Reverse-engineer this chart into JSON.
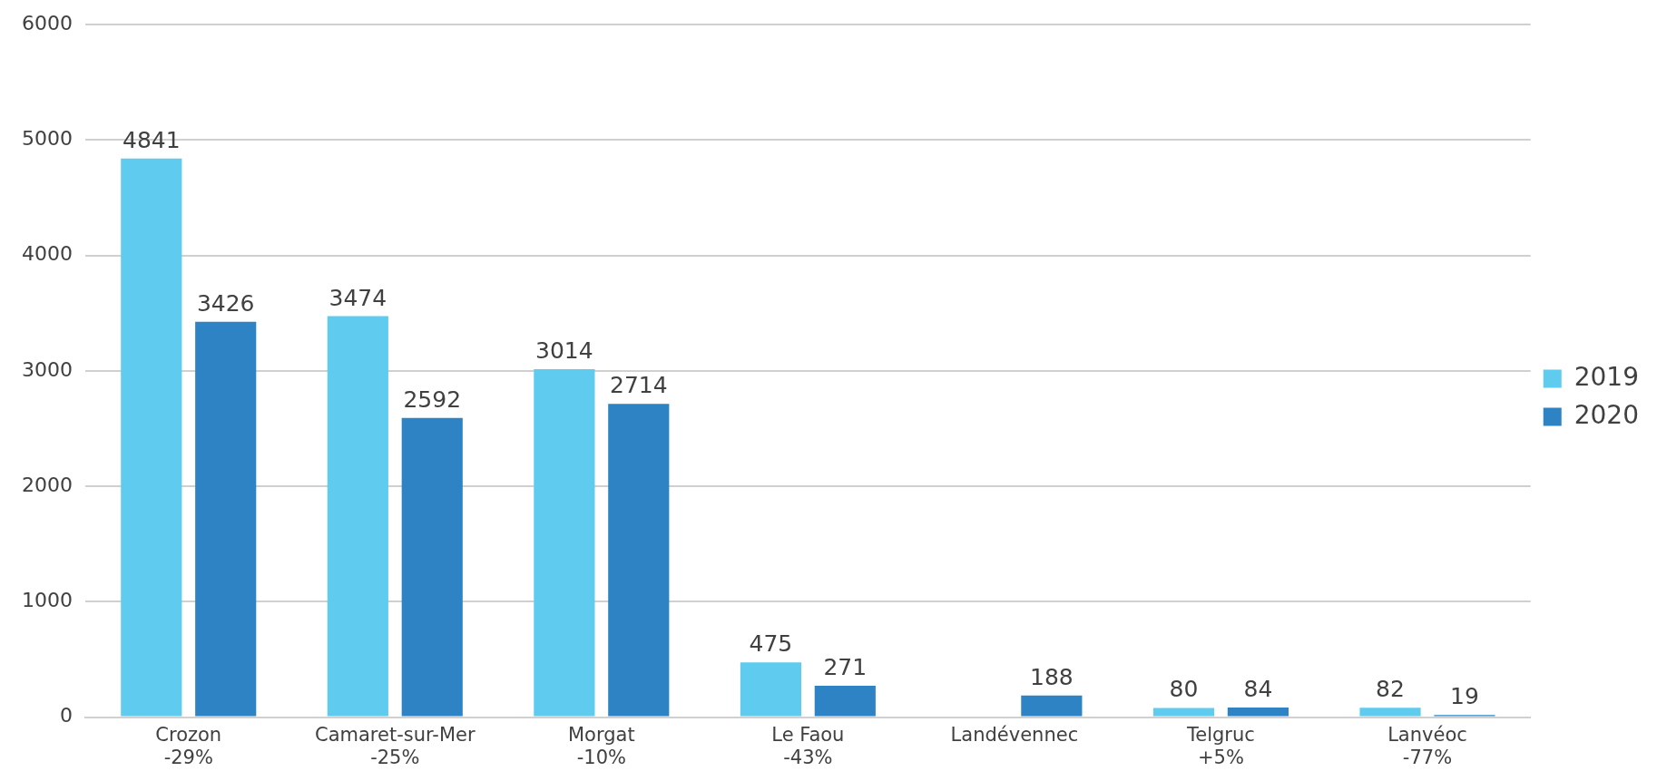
{
  "chart_data": {
    "type": "bar",
    "categories": [
      "Crozon\n-29%",
      "Camaret-sur-Mer\n-25%",
      "Morgat\n-10%",
      "Le Faou\n-43%",
      "Landévennec",
      "Telgruc\n+5%",
      "Lanvéoc\n-77%"
    ],
    "series": [
      {
        "name": "2019",
        "color": "#5fcbee",
        "values": [
          4841,
          3474,
          3014,
          475,
          null,
          80,
          82
        ]
      },
      {
        "name": "2020",
        "color": "#2e83c4",
        "values": [
          3426,
          2592,
          2714,
          271,
          188,
          84,
          19
        ]
      }
    ],
    "ylim": [
      0,
      6000
    ],
    "yticks": [
      0,
      1000,
      2000,
      3000,
      4000,
      5000,
      6000
    ],
    "grid": "y",
    "legend": "right",
    "data_labels": true
  }
}
